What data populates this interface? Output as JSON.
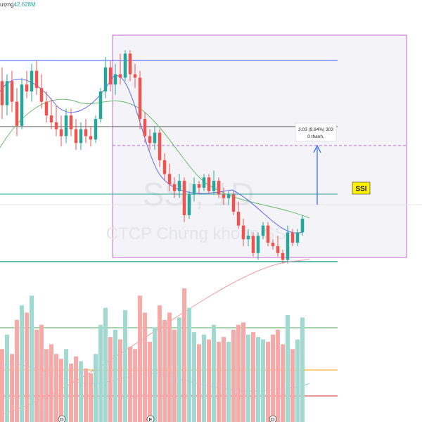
{
  "header": {
    "volume_label": "ượng",
    "volume_value": "42.628M"
  },
  "watermark": {
    "symbol": "SSI, 1D",
    "company": "CTCP Chứng khoán SSI"
  },
  "measure": {
    "line1": "3.03 (9.84%) 303",
    "line2": "0 thanh,"
  },
  "symbol_badge": "SSI",
  "colors": {
    "up": "#26a69a",
    "down": "#ef5350",
    "ma_fast": "#5b6cf2",
    "ma_mid": "#66bb6a",
    "ma_long": "#ef5350",
    "zone_border": "#c56bd6",
    "zone_fill": "#f4f4f8",
    "badge_bg": "#fff200",
    "arrow": "#2962ff"
  },
  "chart_data": {
    "type": "candlestick",
    "price_levels": {
      "blue_line": 35.0,
      "dark_line": 33.0,
      "dashed_purple": 32.4,
      "teal_line": 31.05,
      "green_bottom": 29.15
    },
    "candles": [
      [
        34.4,
        34.8,
        33.3,
        33.7
      ],
      [
        33.7,
        34.6,
        33.4,
        34.4
      ],
      [
        34.4,
        34.7,
        33.5,
        33.8
      ],
      [
        33.8,
        34.2,
        32.8,
        33.1
      ],
      [
        33.1,
        34.5,
        33.0,
        34.3
      ],
      [
        34.3,
        34.7,
        33.9,
        34.1
      ],
      [
        34.1,
        34.9,
        33.8,
        34.7
      ],
      [
        34.7,
        35.0,
        34.0,
        34.2
      ],
      [
        34.2,
        34.6,
        33.6,
        33.8
      ],
      [
        33.8,
        34.1,
        33.2,
        33.4
      ],
      [
        33.4,
        33.9,
        33.0,
        33.2
      ],
      [
        33.2,
        33.7,
        32.8,
        33.0
      ],
      [
        33.0,
        33.4,
        32.5,
        32.8
      ],
      [
        32.8,
        33.6,
        32.6,
        33.4
      ],
      [
        33.4,
        33.6,
        32.8,
        33.0
      ],
      [
        33.0,
        33.3,
        32.4,
        32.6
      ],
      [
        32.6,
        33.2,
        32.4,
        33.0
      ],
      [
        33.0,
        33.3,
        32.6,
        32.8
      ],
      [
        32.8,
        33.1,
        32.5,
        32.7
      ],
      [
        32.7,
        33.4,
        32.6,
        33.3
      ],
      [
        33.3,
        34.2,
        33.2,
        34.1
      ],
      [
        34.1,
        35.1,
        33.9,
        34.8
      ],
      [
        34.8,
        35.0,
        34.1,
        34.3
      ],
      [
        34.3,
        34.9,
        34.0,
        34.6
      ],
      [
        34.6,
        35.2,
        34.3,
        34.5
      ],
      [
        34.5,
        35.3,
        34.4,
        35.2
      ],
      [
        35.2,
        35.3,
        34.4,
        34.6
      ],
      [
        34.6,
        34.9,
        34.2,
        34.5
      ],
      [
        34.5,
        34.7,
        33.0,
        33.3
      ],
      [
        33.3,
        33.5,
        32.6,
        32.8
      ],
      [
        32.8,
        33.0,
        32.4,
        32.6
      ],
      [
        32.6,
        33.1,
        32.4,
        32.9
      ],
      [
        32.9,
        33.0,
        31.9,
        32.1
      ],
      [
        32.1,
        32.3,
        31.5,
        31.7
      ],
      [
        31.7,
        32.0,
        31.2,
        31.4
      ],
      [
        31.4,
        31.6,
        31.0,
        31.2
      ],
      [
        31.2,
        31.7,
        31.0,
        31.5
      ],
      [
        31.5,
        31.6,
        30.3,
        30.5
      ],
      [
        30.5,
        31.2,
        30.4,
        31.1
      ],
      [
        31.1,
        31.6,
        30.9,
        31.4
      ],
      [
        31.4,
        31.5,
        31.1,
        31.3
      ],
      [
        31.3,
        31.7,
        31.2,
        31.6
      ],
      [
        31.6,
        31.7,
        31.1,
        31.2
      ],
      [
        31.2,
        31.8,
        31.1,
        31.5
      ],
      [
        31.5,
        31.6,
        31.0,
        31.1
      ],
      [
        31.1,
        31.3,
        30.8,
        31.0
      ],
      [
        31.0,
        31.2,
        30.8,
        31.1
      ],
      [
        31.1,
        31.2,
        30.5,
        30.6
      ],
      [
        30.6,
        30.9,
        30.1,
        30.2
      ],
      [
        30.2,
        30.4,
        29.6,
        29.8
      ],
      [
        29.8,
        30.1,
        29.6,
        29.9
      ],
      [
        29.9,
        30.0,
        29.3,
        29.4
      ],
      [
        29.4,
        30.0,
        29.2,
        29.9
      ],
      [
        29.9,
        30.3,
        29.8,
        30.2
      ],
      [
        30.2,
        30.3,
        29.6,
        29.7
      ],
      [
        29.7,
        29.8,
        29.5,
        29.6
      ],
      [
        29.6,
        29.9,
        29.3,
        29.4
      ],
      [
        29.4,
        29.5,
        29.1,
        29.2
      ],
      [
        29.2,
        30.2,
        29.1,
        30.0
      ],
      [
        30.0,
        30.1,
        29.6,
        29.7
      ],
      [
        29.7,
        30.1,
        29.6,
        30.0
      ],
      [
        30.0,
        30.5,
        29.9,
        30.4
      ]
    ],
    "volumes": [
      0.3,
      0.36,
      0.28,
      0.42,
      0.48,
      0.45,
      0.52,
      0.38,
      0.4,
      0.3,
      0.32,
      0.28,
      0.26,
      0.3,
      0.24,
      0.27,
      0.25,
      0.22,
      0.2,
      0.28,
      0.4,
      0.47,
      0.35,
      0.38,
      0.34,
      0.46,
      0.31,
      0.3,
      0.52,
      0.45,
      0.33,
      0.39,
      0.48,
      0.42,
      0.45,
      0.38,
      0.43,
      0.55,
      0.47,
      0.37,
      0.32,
      0.36,
      0.34,
      0.4,
      0.33,
      0.35,
      0.33,
      0.38,
      0.4,
      0.41,
      0.36,
      0.37,
      0.35,
      0.34,
      0.33,
      0.36,
      0.38,
      0.32,
      0.44,
      0.3,
      0.34,
      0.43
    ],
    "event_marker_labels": [
      "D",
      "E",
      "D"
    ]
  }
}
